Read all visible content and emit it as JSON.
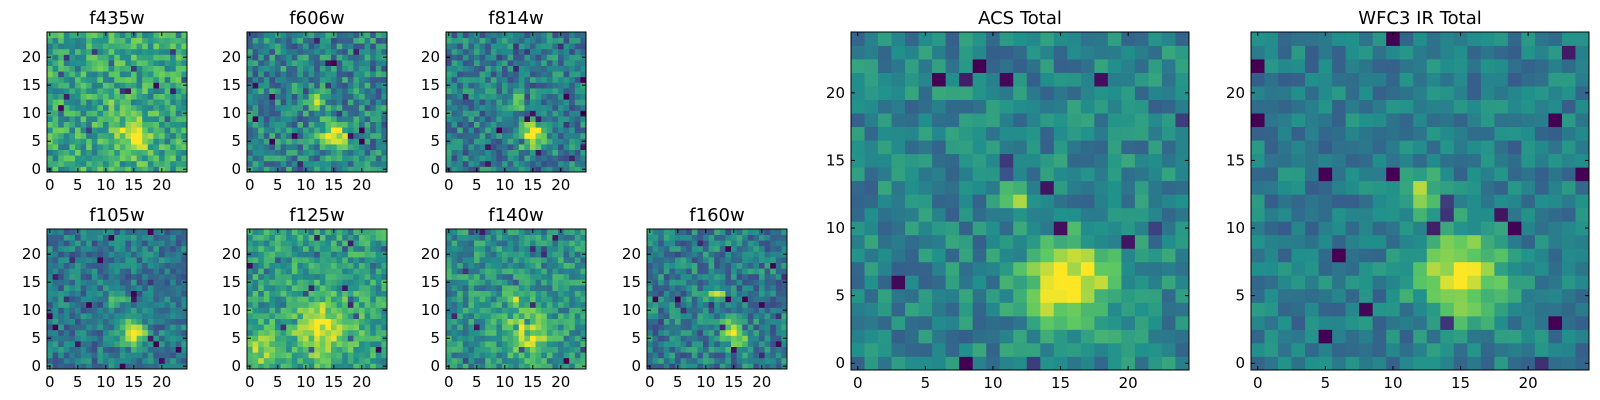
{
  "figure": {
    "background": "#ffffff",
    "colormap": "viridis",
    "colormap_stops": [
      "#440154",
      "#3b528b",
      "#21918c",
      "#5ec962",
      "#fde725"
    ]
  },
  "chart_data": [
    {
      "type": "heatmap",
      "title": "f435w",
      "grid_size": 25,
      "x_ticks": [
        0,
        5,
        10,
        15,
        20
      ],
      "y_ticks": [
        0,
        5,
        10,
        15,
        20
      ],
      "xlim": [
        -0.5,
        24.5
      ],
      "ylim": [
        -0.5,
        24.5
      ],
      "values_normalized": "per-pixel noise map with bright source near (15,6) and fainter source near (12,12)",
      "background_level": 0.6,
      "noise": 0.2,
      "sources": [
        {
          "x": 15,
          "y": 6,
          "amp": 0.4,
          "sigma": 2.0
        },
        {
          "x": 12,
          "y": 12,
          "amp": 0.15,
          "sigma": 1.2
        }
      ]
    },
    {
      "type": "heatmap",
      "title": "f606w",
      "grid_size": 25,
      "x_ticks": [
        0,
        5,
        10,
        15,
        20
      ],
      "y_ticks": [
        0,
        5,
        10,
        15,
        20
      ],
      "xlim": [
        -0.5,
        24.5
      ],
      "ylim": [
        -0.5,
        24.5
      ],
      "values_normalized": "per-pixel noise map with bright source near (15,6) and fainter source near (12,12)",
      "background_level": 0.45,
      "noise": 0.22,
      "sources": [
        {
          "x": 15,
          "y": 6,
          "amp": 0.55,
          "sigma": 1.8
        },
        {
          "x": 12,
          "y": 12,
          "amp": 0.35,
          "sigma": 1.0
        }
      ]
    },
    {
      "type": "heatmap",
      "title": "f814w",
      "grid_size": 25,
      "x_ticks": [
        0,
        5,
        10,
        15,
        20
      ],
      "y_ticks": [
        0,
        5,
        10,
        15,
        20
      ],
      "xlim": [
        -0.5,
        24.5
      ],
      "ylim": [
        -0.5,
        24.5
      ],
      "values_normalized": "per-pixel noise map with bright source near (15,6) and fainter source near (12,12)",
      "background_level": 0.42,
      "noise": 0.2,
      "sources": [
        {
          "x": 15,
          "y": 6,
          "amp": 0.6,
          "sigma": 1.7
        },
        {
          "x": 12,
          "y": 12,
          "amp": 0.4,
          "sigma": 1.0
        }
      ]
    },
    {
      "type": "heatmap",
      "title": "f105w",
      "grid_size": 25,
      "x_ticks": [
        0,
        5,
        10,
        15,
        20
      ],
      "y_ticks": [
        0,
        5,
        10,
        15,
        20
      ],
      "xlim": [
        -0.5,
        24.5
      ],
      "ylim": [
        -0.5,
        24.5
      ],
      "values_normalized": "per-pixel noise map with bright source near (15,6) and fainter source near (12,12)",
      "background_level": 0.4,
      "noise": 0.17,
      "sources": [
        {
          "x": 15,
          "y": 6,
          "amp": 0.6,
          "sigma": 1.6
        },
        {
          "x": 12,
          "y": 12,
          "amp": 0.35,
          "sigma": 1.0
        }
      ]
    },
    {
      "type": "heatmap",
      "title": "f125w",
      "grid_size": 25,
      "x_ticks": [
        0,
        5,
        10,
        15,
        20
      ],
      "y_ticks": [
        0,
        5,
        10,
        15,
        20
      ],
      "xlim": [
        -0.5,
        24.5
      ],
      "ylim": [
        -0.5,
        24.5
      ],
      "values_normalized": "per-pixel noise map with broad bright region near (13,7)",
      "background_level": 0.55,
      "noise": 0.18,
      "sources": [
        {
          "x": 13,
          "y": 7,
          "amp": 0.35,
          "sigma": 4.0
        },
        {
          "x": 2,
          "y": 3,
          "amp": 0.3,
          "sigma": 2.0
        }
      ]
    },
    {
      "type": "heatmap",
      "title": "f140w",
      "grid_size": 25,
      "x_ticks": [
        0,
        5,
        10,
        15,
        20
      ],
      "y_ticks": [
        0,
        5,
        10,
        15,
        20
      ],
      "xlim": [
        -0.5,
        24.5
      ],
      "ylim": [
        -0.5,
        24.5
      ],
      "values_normalized": "per-pixel noise map with bright region near (14,6)",
      "background_level": 0.5,
      "noise": 0.18,
      "sources": [
        {
          "x": 14,
          "y": 6,
          "amp": 0.4,
          "sigma": 3.0
        },
        {
          "x": 12,
          "y": 12,
          "amp": 0.25,
          "sigma": 1.2
        }
      ]
    },
    {
      "type": "heatmap",
      "title": "f160w",
      "grid_size": 25,
      "x_ticks": [
        0,
        5,
        10,
        15,
        20
      ],
      "y_ticks": [
        0,
        5,
        10,
        15,
        20
      ],
      "xlim": [
        -0.5,
        24.5
      ],
      "ylim": [
        -0.5,
        24.5
      ],
      "values_normalized": "per-pixel noise map with bright source near (15,6) and fainter source near (12,12)",
      "background_level": 0.42,
      "noise": 0.2,
      "sources": [
        {
          "x": 15,
          "y": 6,
          "amp": 0.55,
          "sigma": 1.6
        },
        {
          "x": 12,
          "y": 13,
          "amp": 0.45,
          "sigma": 1.0
        }
      ]
    },
    {
      "type": "heatmap",
      "title": "ACS Total",
      "grid_size": 25,
      "x_ticks": [
        0,
        5,
        10,
        15,
        20
      ],
      "y_ticks": [
        0,
        5,
        10,
        15,
        20
      ],
      "xlim": [
        -0.5,
        24.5
      ],
      "ylim": [
        -0.5,
        24.5
      ],
      "values_normalized": "per-pixel noise map with bright source near (15,6) and fainter source near (11,12)",
      "background_level": 0.45,
      "noise": 0.15,
      "sources": [
        {
          "x": 15.5,
          "y": 6,
          "amp": 0.6,
          "sigma": 2.2
        },
        {
          "x": 11.5,
          "y": 12.5,
          "amp": 0.45,
          "sigma": 0.9
        }
      ]
    },
    {
      "type": "heatmap",
      "title": "WFC3 IR Total",
      "grid_size": 25,
      "x_ticks": [
        0,
        5,
        10,
        15,
        20
      ],
      "y_ticks": [
        0,
        5,
        10,
        15,
        20
      ],
      "xlim": [
        -0.5,
        24.5
      ],
      "ylim": [
        -0.5,
        24.5
      ],
      "values_normalized": "per-pixel noise map with bright source near (15,6) and fainter source near (12,12)",
      "background_level": 0.42,
      "noise": 0.13,
      "sources": [
        {
          "x": 15,
          "y": 6.5,
          "amp": 0.6,
          "sigma": 2.2
        },
        {
          "x": 12,
          "y": 12.5,
          "amp": 0.45,
          "sigma": 1.0
        }
      ]
    }
  ]
}
